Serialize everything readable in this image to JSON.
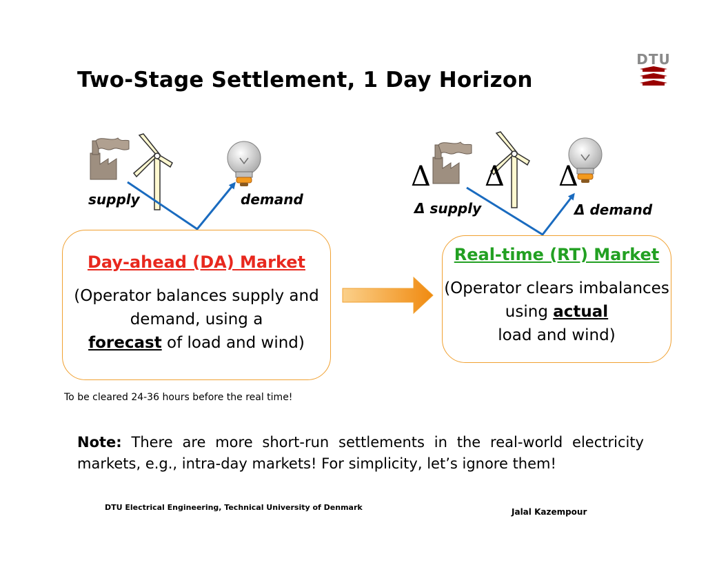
{
  "slide": {
    "title": "Two-Stage Settlement, 1 Day Horizon",
    "logo_text": "DTU",
    "logo_color": "#990000"
  },
  "left_diagram": {
    "supply_label": "supply",
    "demand_label": "demand"
  },
  "right_diagram": {
    "delta_symbol": "Δ",
    "supply_label": "Δ supply",
    "demand_label": "Δ demand"
  },
  "da_market": {
    "title": "Day-ahead (DA) Market",
    "body_pre": "(Operator balances supply and demand, using a",
    "body_bold": "forecast",
    "body_post": "of load and wind)",
    "title_color": "#e8281e"
  },
  "rt_market": {
    "title": "Real-time (RT) Market",
    "body_pre": "(Operator clears imbalances using",
    "body_bold": "actual",
    "body_post": "load and wind)",
    "title_color": "#22a022"
  },
  "timing_note": "To be cleared 24-36 hours before the real time!",
  "note": {
    "label": "Note:",
    "text": "There are more short-run settlements in the real-world electricity markets, e.g., intra-day markets! For simplicity, let’s ignore them!"
  },
  "footer": {
    "left": "DTU Electrical Engineering, Technical University of Denmark",
    "right": "Jalal Kazempour"
  },
  "colors": {
    "box_border": "#f0a030",
    "arrow_line": "#1a6bbf",
    "transition_arrow": "#f39a1e"
  },
  "icons": [
    "factory-icon",
    "wind-turbine-icon",
    "light-bulb-icon",
    "right-arrow-icon",
    "dtu-logo-icon"
  ]
}
